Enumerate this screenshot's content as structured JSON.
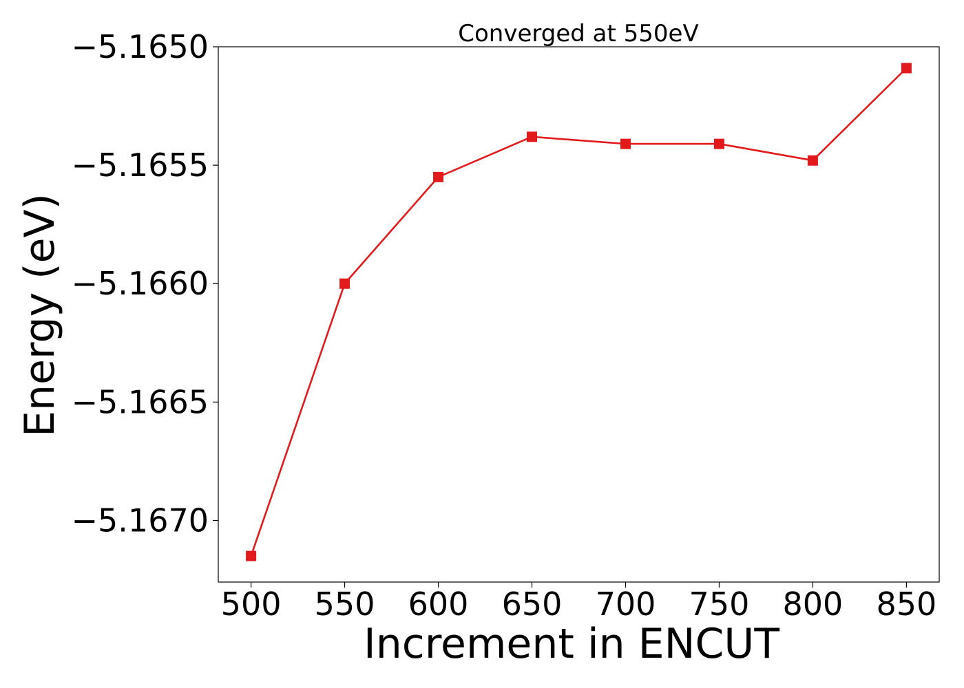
{
  "chart_data": {
    "type": "line",
    "title": "Converged at 550eV",
    "xlabel": "Increment in ENCUT",
    "ylabel": "Energy (eV)",
    "x": [
      500,
      550,
      600,
      650,
      700,
      750,
      800,
      850
    ],
    "series": [
      {
        "values": [
          -5.16715,
          -5.166,
          -5.16555,
          -5.16538,
          -5.16541,
          -5.16541,
          -5.16548,
          -5.16509
        ],
        "color": "#e31a1c",
        "marker": "square"
      }
    ],
    "xticks": [
      500,
      550,
      600,
      650,
      700,
      750,
      800,
      850
    ],
    "xtick_labels": [
      "500",
      "550",
      "600",
      "650",
      "700",
      "750",
      "800",
      "850"
    ],
    "yticks": [
      -5.165,
      -5.1655,
      -5.166,
      -5.1665,
      -5.167
    ],
    "ytick_labels": [
      "−5.1650",
      "−5.1655",
      "−5.1660",
      "−5.1665",
      "−5.1670"
    ],
    "xlim": [
      482.5,
      867.5
    ],
    "ylim": [
      -5.16726,
      -5.165
    ],
    "grid": false,
    "legend": "none"
  }
}
